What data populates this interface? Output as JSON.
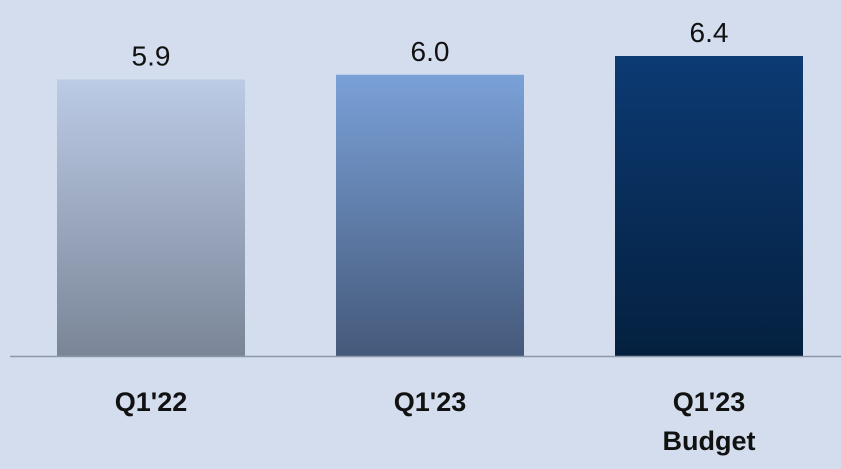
{
  "chart_data": {
    "type": "bar",
    "categories": [
      [
        "Q1'22"
      ],
      [
        "Q1'23"
      ],
      [
        "Q1'23",
        "Budget"
      ]
    ],
    "values": [
      5.9,
      6.0,
      6.4
    ],
    "value_labels": [
      "5.9",
      "6.0",
      "6.4"
    ],
    "title": "",
    "xlabel": "",
    "ylabel": "",
    "grid": false,
    "legend": "none",
    "colors": {
      "background": "#d3dded",
      "axis": "#8d97a8",
      "bars": [
        {
          "top": "#bccbe6",
          "bottom": "#7a8597"
        },
        {
          "top": "#7aa1d8",
          "bottom": "#45597a"
        },
        {
          "top": "#0c3a73",
          "bottom": "#04203f"
        }
      ]
    }
  }
}
